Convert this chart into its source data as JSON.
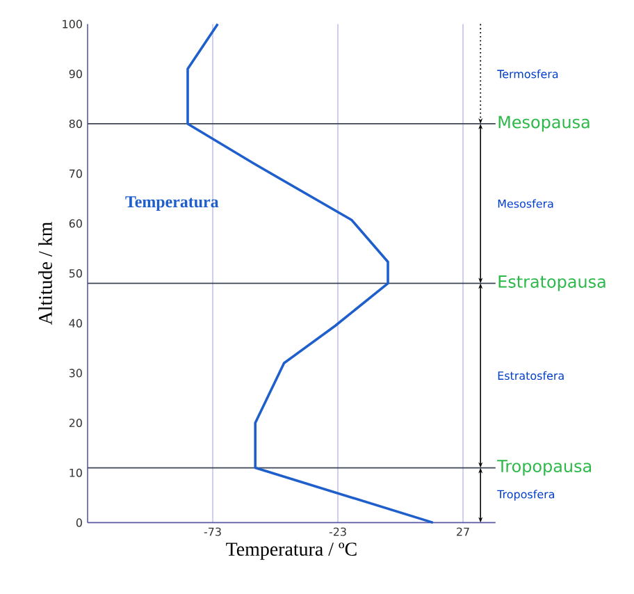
{
  "chart_data": {
    "type": "line",
    "xlabel": "Temperatura / ºC",
    "ylabel": "Altitude / km",
    "x": [
      15,
      -56,
      -56,
      -44.5,
      -24,
      -3,
      -3,
      -17.5,
      -56.5,
      -83,
      -83,
      -71
    ],
    "series": [
      {
        "name": "Temperatura",
        "color": "#1f5fcc",
        "values": [
          0,
          11,
          20,
          32,
          39.5,
          48,
          52.3,
          60.7,
          72,
          80,
          91,
          100
        ]
      }
    ],
    "xlim": [
      -123,
      40
    ],
    "ylim": [
      0,
      100
    ],
    "xticks": [
      -73,
      -23,
      27
    ],
    "yticks": [
      0,
      10,
      20,
      30,
      40,
      50,
      60,
      70,
      80,
      90,
      100
    ],
    "grid": "x",
    "marker": "none",
    "line_style": "solid",
    "ref_lines": [
      {
        "axis": "y",
        "value": 80,
        "label": "Mesopausa",
        "color": "#3b4555"
      },
      {
        "axis": "y",
        "value": 48,
        "label": "Estratopausa",
        "color": "#3b4555"
      },
      {
        "axis": "y",
        "value": 11,
        "label": "Tropopausa",
        "color": "#3b4555"
      }
    ],
    "annotations": [
      "Termosfera",
      "Mesosfera",
      "Estratosfera",
      "Troposfera"
    ]
  }
}
